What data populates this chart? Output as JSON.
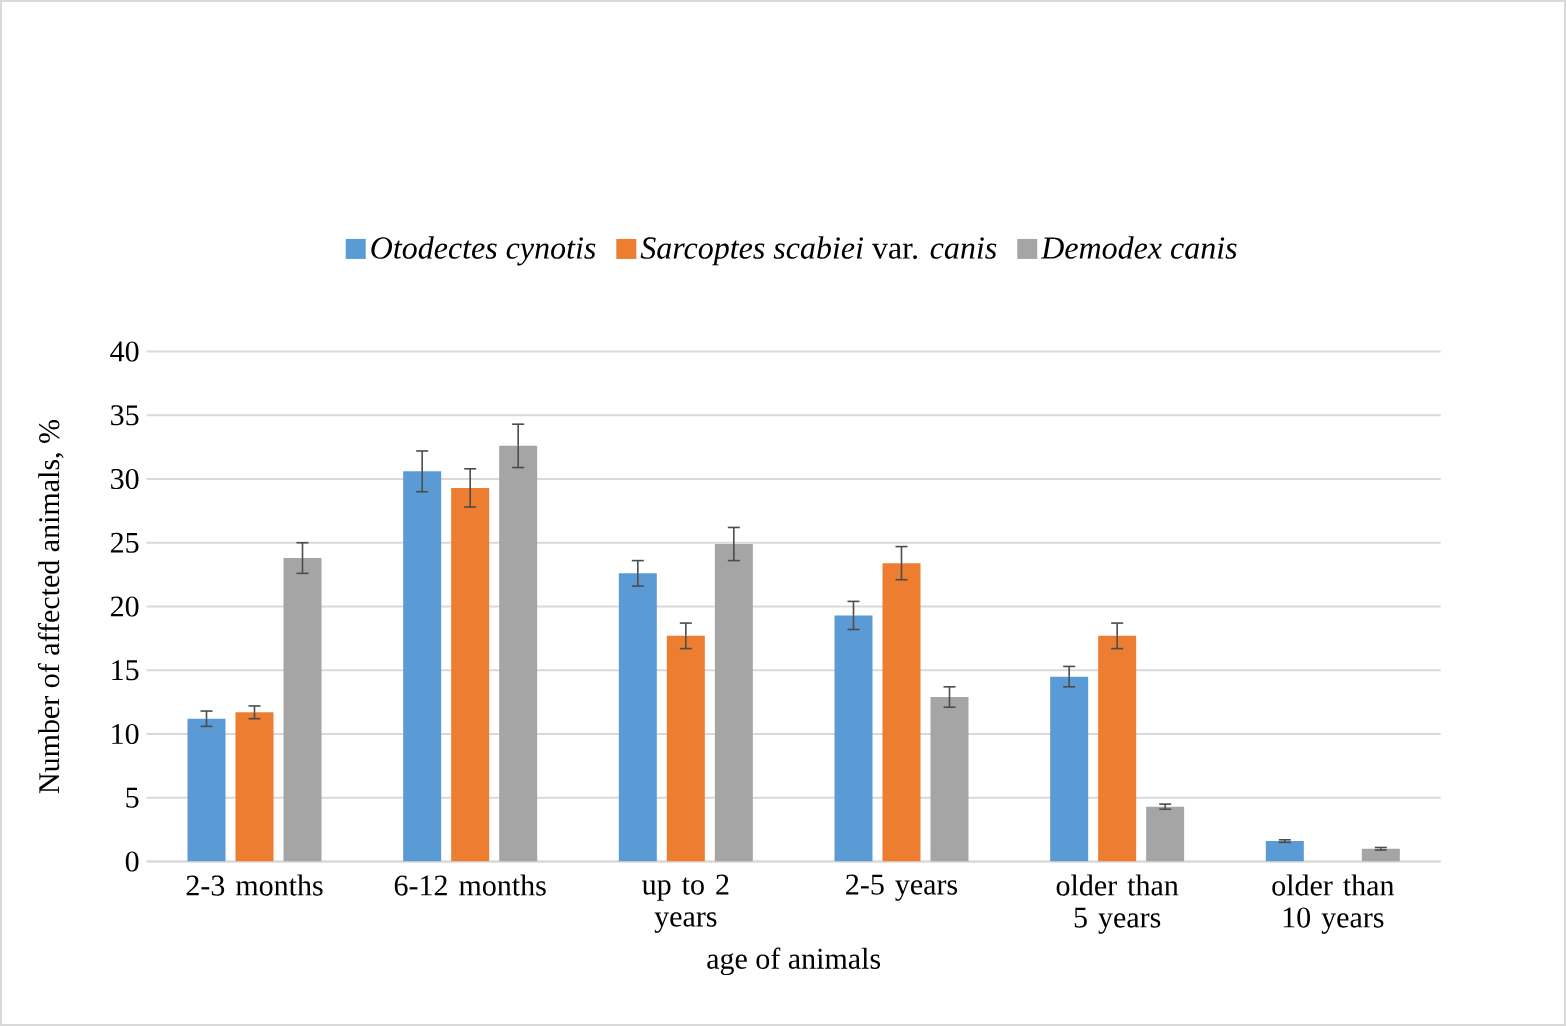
{
  "chart_data": {
    "type": "bar",
    "xlabel": "age of animals",
    "ylabel": "Number of affected animals, %",
    "categories": [
      "2-3 months",
      "6-12 months",
      "up to 2 years",
      "2-5 years",
      "older than 5 years",
      "older than 10 years"
    ],
    "series": [
      {
        "name": "*Otodectes cynotis*",
        "color": "#5b9bd5",
        "values": [
          11.2,
          30.6,
          22.6,
          19.3,
          14.5,
          1.6
        ],
        "errors": [
          0.6,
          1.6,
          1.0,
          1.1,
          0.8,
          0.1
        ]
      },
      {
        "name": "*Sarcoptes scabiei* var. *canis*",
        "color": "#ed7d31",
        "values": [
          11.7,
          29.3,
          17.7,
          23.4,
          17.7,
          null
        ],
        "errors": [
          0.5,
          1.5,
          1.0,
          1.3,
          1.0,
          null
        ]
      },
      {
        "name": "*Demodex canis*",
        "color": "#a5a5a5",
        "values": [
          23.8,
          32.6,
          24.9,
          12.9,
          4.3,
          1.0
        ],
        "errors": [
          1.2,
          1.7,
          1.3,
          0.8,
          0.2,
          0.1
        ]
      }
    ],
    "ylim": [
      0,
      40
    ],
    "yticks": [
      0,
      5,
      10,
      15,
      20,
      25,
      30,
      35,
      40
    ],
    "grid": "y",
    "legend": "top"
  }
}
